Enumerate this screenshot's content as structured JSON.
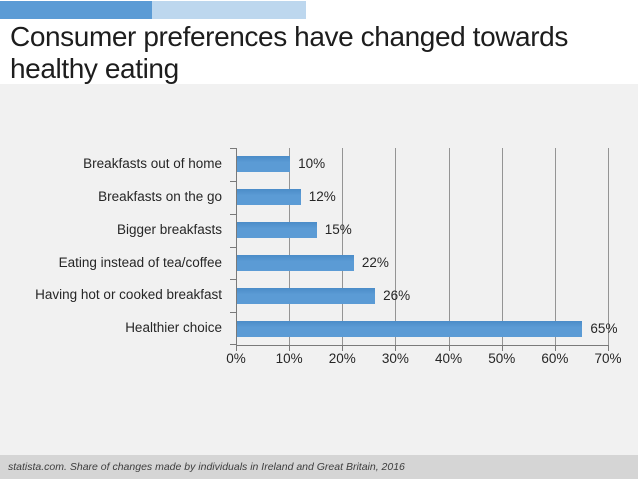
{
  "slide": {
    "title_line1": "Consumer preferences have changed towards",
    "title_line2": "healthy eating",
    "footer": "statista.com. Share of changes made by individuals in Ireland and Great Britain, 2016"
  },
  "colors": {
    "header_bar_dark": "#5b9bd5",
    "header_bar_light": "#bdd7ee",
    "bar_fill": "#5b9bd5",
    "bar_fill_top": "#4b8cc8"
  },
  "chart_data": {
    "type": "bar",
    "orientation": "horizontal",
    "title": "Consumer preferences have changed towards healthy eating",
    "categories": [
      "Breakfasts out of home",
      "Breakfasts on the go",
      "Bigger breakfasts",
      "Eating instead of tea/coffee",
      "Having hot or cooked breakfast",
      "Healthier choice"
    ],
    "values": [
      10,
      12,
      15,
      22,
      26,
      65
    ],
    "value_labels": [
      "10%",
      "12%",
      "15%",
      "22%",
      "26%",
      "65%"
    ],
    "x_tick_labels": [
      "0%",
      "10%",
      "20%",
      "30%",
      "40%",
      "50%",
      "60%",
      "70%"
    ],
    "x_tick_values": [
      0,
      10,
      20,
      30,
      40,
      50,
      60,
      70
    ],
    "xlim": [
      0,
      70
    ],
    "xlabel": "",
    "ylabel": "",
    "grid": true,
    "legend": false,
    "source_note": "statista.com. Share of changes made by individuals in Ireland and Great Britain, 2016"
  }
}
